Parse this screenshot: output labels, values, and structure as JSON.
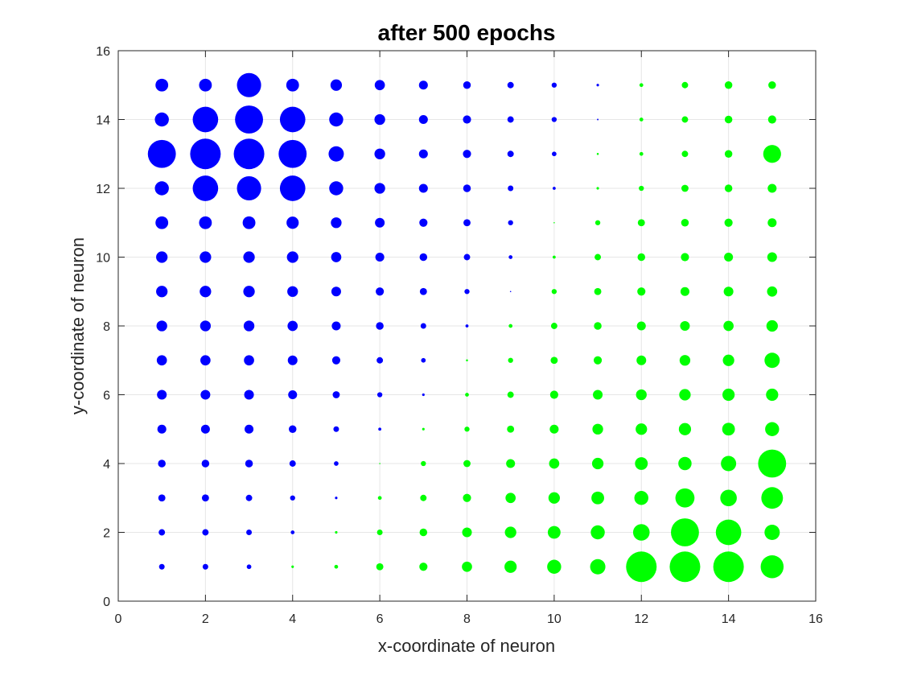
{
  "chart_data": {
    "type": "scatter",
    "title": "after 500 epochs",
    "xlabel": "x-coordinate of neuron",
    "ylabel": "y-coordinate of neuron",
    "xlim": [
      0,
      16
    ],
    "ylim": [
      0,
      16
    ],
    "xticks": [
      "0",
      "2",
      "4",
      "6",
      "8",
      "10",
      "12",
      "14",
      "16"
    ],
    "yticks": [
      "0",
      "2",
      "4",
      "6",
      "8",
      "10",
      "12",
      "14",
      "16"
    ],
    "grid": true,
    "colors": {
      "blue": "#0000ff",
      "green": "#00ff00"
    },
    "grid_x": [
      1,
      2,
      3,
      4,
      5,
      6,
      7,
      8,
      9,
      10,
      11,
      12,
      13,
      14,
      15
    ],
    "grid_y": [
      15,
      14,
      13,
      12,
      11,
      10,
      9,
      8,
      7,
      6,
      5,
      4,
      3,
      2,
      1
    ],
    "magnitude": [
      [
        0.5,
        0.5,
        0.95,
        0.5,
        0.45,
        0.4,
        0.35,
        0.3,
        0.25,
        0.2,
        0.1,
        0.15,
        0.25,
        0.3,
        0.3
      ],
      [
        0.55,
        1.0,
        1.1,
        1.0,
        0.55,
        0.42,
        0.35,
        0.32,
        0.25,
        0.2,
        0.06,
        0.15,
        0.25,
        0.3,
        0.32
      ],
      [
        1.1,
        1.2,
        1.2,
        1.1,
        0.6,
        0.42,
        0.35,
        0.32,
        0.25,
        0.18,
        0.08,
        0.15,
        0.25,
        0.3,
        0.7
      ],
      [
        0.55,
        1.0,
        0.95,
        1.0,
        0.55,
        0.42,
        0.35,
        0.3,
        0.22,
        0.12,
        0.1,
        0.2,
        0.28,
        0.3,
        0.35
      ],
      [
        0.5,
        0.5,
        0.5,
        0.48,
        0.42,
        0.38,
        0.32,
        0.28,
        0.2,
        0.05,
        0.2,
        0.28,
        0.3,
        0.32,
        0.35
      ],
      [
        0.45,
        0.45,
        0.45,
        0.45,
        0.4,
        0.35,
        0.3,
        0.25,
        0.15,
        0.12,
        0.25,
        0.3,
        0.32,
        0.35,
        0.38
      ],
      [
        0.45,
        0.45,
        0.45,
        0.42,
        0.38,
        0.32,
        0.28,
        0.2,
        0.05,
        0.2,
        0.28,
        0.32,
        0.35,
        0.38,
        0.4
      ],
      [
        0.42,
        0.42,
        0.42,
        0.4,
        0.35,
        0.3,
        0.22,
        0.12,
        0.15,
        0.25,
        0.3,
        0.35,
        0.38,
        0.4,
        0.45
      ],
      [
        0.4,
        0.4,
        0.4,
        0.38,
        0.32,
        0.25,
        0.18,
        0.08,
        0.2,
        0.28,
        0.32,
        0.38,
        0.42,
        0.45,
        0.6
      ],
      [
        0.38,
        0.38,
        0.38,
        0.35,
        0.28,
        0.2,
        0.1,
        0.15,
        0.25,
        0.32,
        0.38,
        0.42,
        0.45,
        0.48,
        0.48
      ],
      [
        0.35,
        0.35,
        0.35,
        0.3,
        0.22,
        0.12,
        0.1,
        0.2,
        0.28,
        0.35,
        0.42,
        0.45,
        0.48,
        0.5,
        0.55
      ],
      [
        0.3,
        0.3,
        0.3,
        0.25,
        0.18,
        0.05,
        0.2,
        0.28,
        0.35,
        0.4,
        0.45,
        0.5,
        0.52,
        0.6,
        1.1
      ],
      [
        0.28,
        0.28,
        0.25,
        0.2,
        0.1,
        0.15,
        0.25,
        0.32,
        0.4,
        0.45,
        0.5,
        0.55,
        0.75,
        0.65,
        0.85
      ],
      [
        0.25,
        0.25,
        0.22,
        0.15,
        0.1,
        0.22,
        0.3,
        0.38,
        0.45,
        0.5,
        0.55,
        0.65,
        1.1,
        1.0,
        0.6
      ],
      [
        0.22,
        0.22,
        0.18,
        0.1,
        0.15,
        0.28,
        0.32,
        0.4,
        0.48,
        0.55,
        0.6,
        1.2,
        1.2,
        1.2,
        0.9
      ]
    ],
    "cluster": [
      [
        "b",
        "b",
        "b",
        "b",
        "b",
        "b",
        "b",
        "b",
        "b",
        "b",
        "b",
        "g",
        "g",
        "g",
        "g"
      ],
      [
        "b",
        "b",
        "b",
        "b",
        "b",
        "b",
        "b",
        "b",
        "b",
        "b",
        "b",
        "g",
        "g",
        "g",
        "g"
      ],
      [
        "b",
        "b",
        "b",
        "b",
        "b",
        "b",
        "b",
        "b",
        "b",
        "b",
        "g",
        "g",
        "g",
        "g",
        "g"
      ],
      [
        "b",
        "b",
        "b",
        "b",
        "b",
        "b",
        "b",
        "b",
        "b",
        "b",
        "g",
        "g",
        "g",
        "g",
        "g"
      ],
      [
        "b",
        "b",
        "b",
        "b",
        "b",
        "b",
        "b",
        "b",
        "b",
        "g",
        "g",
        "g",
        "g",
        "g",
        "g"
      ],
      [
        "b",
        "b",
        "b",
        "b",
        "b",
        "b",
        "b",
        "b",
        "b",
        "g",
        "g",
        "g",
        "g",
        "g",
        "g"
      ],
      [
        "b",
        "b",
        "b",
        "b",
        "b",
        "b",
        "b",
        "b",
        "b",
        "g",
        "g",
        "g",
        "g",
        "g",
        "g"
      ],
      [
        "b",
        "b",
        "b",
        "b",
        "b",
        "b",
        "b",
        "b",
        "g",
        "g",
        "g",
        "g",
        "g",
        "g",
        "g"
      ],
      [
        "b",
        "b",
        "b",
        "b",
        "b",
        "b",
        "b",
        "g",
        "g",
        "g",
        "g",
        "g",
        "g",
        "g",
        "g"
      ],
      [
        "b",
        "b",
        "b",
        "b",
        "b",
        "b",
        "b",
        "g",
        "g",
        "g",
        "g",
        "g",
        "g",
        "g",
        "g"
      ],
      [
        "b",
        "b",
        "b",
        "b",
        "b",
        "b",
        "g",
        "g",
        "g",
        "g",
        "g",
        "g",
        "g",
        "g",
        "g"
      ],
      [
        "b",
        "b",
        "b",
        "b",
        "b",
        "g",
        "g",
        "g",
        "g",
        "g",
        "g",
        "g",
        "g",
        "g",
        "g"
      ],
      [
        "b",
        "b",
        "b",
        "b",
        "b",
        "g",
        "g",
        "g",
        "g",
        "g",
        "g",
        "g",
        "g",
        "g",
        "g"
      ],
      [
        "b",
        "b",
        "b",
        "b",
        "g",
        "g",
        "g",
        "g",
        "g",
        "g",
        "g",
        "g",
        "g",
        "g",
        "g"
      ],
      [
        "b",
        "b",
        "b",
        "g",
        "g",
        "g",
        "g",
        "g",
        "g",
        "g",
        "g",
        "g",
        "g",
        "g",
        "g"
      ]
    ]
  }
}
